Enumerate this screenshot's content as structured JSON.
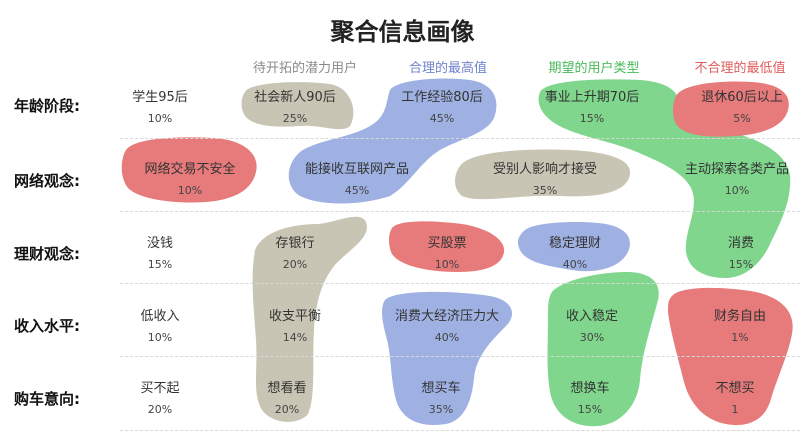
{
  "title": "聚合信息画像",
  "columns": [
    {
      "label": "",
      "color": "#333333"
    },
    {
      "label": "待开拓的潜力用户",
      "color": "#8a8a8a"
    },
    {
      "label": "合理的最高值",
      "color": "#6f84cc"
    },
    {
      "label": "期望的用户类型",
      "color": "#49b85a"
    },
    {
      "label": "不合理的最低值",
      "color": "#e05a5a"
    }
  ],
  "rows": [
    {
      "label": "年龄阶段:",
      "cells": [
        {
          "name": "学生95后",
          "pct": "10%"
        },
        {
          "name": "社会新人90后",
          "pct": "25%"
        },
        {
          "name": "工作经验80后",
          "pct": "45%"
        },
        {
          "name": "事业上升期70后",
          "pct": "15%"
        },
        {
          "name": "退休60后以上",
          "pct": "5%"
        }
      ]
    },
    {
      "label": "网络观念:",
      "cells": [
        {
          "name": "网络交易不安全",
          "pct": "10%"
        },
        {
          "name": "能接收互联网产品",
          "pct": "45%"
        },
        {
          "name": "受别人影响才接受",
          "pct": "35%"
        },
        {
          "name": "主动探索各类产品",
          "pct": "10%"
        }
      ]
    },
    {
      "label": "理财观念:",
      "cells": [
        {
          "name": "没钱",
          "pct": "15%"
        },
        {
          "name": "存银行",
          "pct": "20%"
        },
        {
          "name": "买股票",
          "pct": "10%"
        },
        {
          "name": "稳定理财",
          "pct": "40%"
        },
        {
          "name": "消费",
          "pct": "15%"
        }
      ]
    },
    {
      "label": "收入水平:",
      "cells": [
        {
          "name": "低收入",
          "pct": "10%"
        },
        {
          "name": "收支平衡",
          "pct": "14%"
        },
        {
          "name": "消费大经济压力大",
          "pct": "40%"
        },
        {
          "name": "收入稳定",
          "pct": "30%"
        },
        {
          "name": "财务自由",
          "pct": "1%"
        }
      ]
    },
    {
      "label": "购车意向:",
      "cells": [
        {
          "name": "买不起",
          "pct": "20%"
        },
        {
          "name": "想看看",
          "pct": "20%"
        },
        {
          "name": "想买车",
          "pct": "35%"
        },
        {
          "name": "想换车",
          "pct": "15%"
        },
        {
          "name": "不想买",
          "pct": "1"
        }
      ]
    }
  ],
  "blob_colors": {
    "gray": "#c9c5b4",
    "blue": "#9fb1e3",
    "green": "#7fd68c",
    "red": "#e77a7a"
  }
}
